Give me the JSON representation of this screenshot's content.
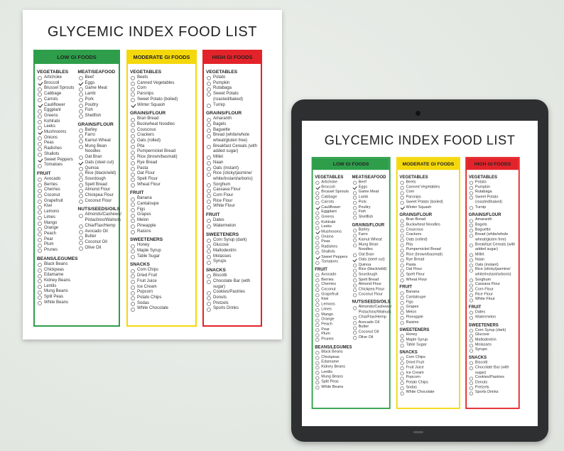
{
  "title": "GLYCEMIC INDEX FOOD LIST",
  "columns": [
    {
      "heading": "LOW GI FOODS",
      "color": "#2e9e4a",
      "subcolumns": [
        {
          "sections": [
            {
              "heading": "VEGETABLES",
              "items": [
                {
                  "label": "Artichoke"
                },
                {
                  "label": "Broccoli",
                  "checked": true
                },
                {
                  "label": "Brussel Sprouts"
                },
                {
                  "label": "Cabbage"
                },
                {
                  "label": "Carrots"
                },
                {
                  "label": "Cauliflower",
                  "checked": true
                },
                {
                  "label": "Eggplant"
                },
                {
                  "label": "Greens"
                },
                {
                  "label": "Kohlrabi"
                },
                {
                  "label": "Leeks"
                },
                {
                  "label": "Mushrooms",
                  "checked": true
                },
                {
                  "label": "Onions"
                },
                {
                  "label": "Peas"
                },
                {
                  "label": "Radishes"
                },
                {
                  "label": "Shallots"
                },
                {
                  "label": "Sweet Peppers",
                  "checked": true
                },
                {
                  "label": "Tomatoes"
                }
              ]
            },
            {
              "heading": "FRUIT",
              "items": [
                {
                  "label": "Avocado"
                },
                {
                  "label": "Berries"
                },
                {
                  "label": "Cherries"
                },
                {
                  "label": "Coconut"
                },
                {
                  "label": "Grapefruit"
                },
                {
                  "label": "Kiwi"
                },
                {
                  "label": "Lemons"
                },
                {
                  "label": "Limes"
                },
                {
                  "label": "Mango"
                },
                {
                  "label": "Orange"
                },
                {
                  "label": "Peach"
                },
                {
                  "label": "Pear"
                },
                {
                  "label": "Plum"
                },
                {
                  "label": "Prunes"
                }
              ]
            },
            {
              "heading": "BEANS/LEGUMES",
              "items": [
                {
                  "label": "Black Beans"
                },
                {
                  "label": "Chickpeas"
                },
                {
                  "label": "Edamame"
                },
                {
                  "label": "Kidney Beans"
                },
                {
                  "label": "Lentils"
                },
                {
                  "label": "Mung Beans"
                },
                {
                  "label": "Split Peas"
                },
                {
                  "label": "White Beans"
                }
              ]
            }
          ]
        },
        {
          "sections": [
            {
              "heading": "MEAT/SEAFOOD",
              "items": [
                {
                  "label": "Beef"
                },
                {
                  "label": "Eggs",
                  "checked": true
                },
                {
                  "label": "Game Meat"
                },
                {
                  "label": "Lamb"
                },
                {
                  "label": "Pork"
                },
                {
                  "label": "Poultry"
                },
                {
                  "label": "Fish"
                },
                {
                  "label": "Shellfish"
                }
              ]
            },
            {
              "heading": "GRAINS/FLOUR",
              "items": [
                {
                  "label": "Barley"
                },
                {
                  "label": "Farro"
                },
                {
                  "label": "Kamut Wheat"
                },
                {
                  "label": "Mung Bean Noodles"
                },
                {
                  "label": "Oat Bran"
                },
                {
                  "label": "Oats (steel cut)",
                  "checked": true
                },
                {
                  "label": "Quinoa"
                },
                {
                  "label": "Rice (black/wild)"
                },
                {
                  "label": "Sourdough"
                },
                {
                  "label": "Spelt Bread"
                },
                {
                  "label": "Almond Flour"
                },
                {
                  "label": "Chickpea Flour"
                },
                {
                  "label": "Coconut Flour"
                }
              ]
            },
            {
              "heading": "NUTS/SEEDS/OILS",
              "items": [
                {
                  "label": "Almonds/Cashews/ Pistachios/Walnuts"
                },
                {
                  "label": "Chia/Flax/Hemp"
                },
                {
                  "label": "Avocado Oil"
                },
                {
                  "label": "Butter"
                },
                {
                  "label": "Coconut Oil"
                },
                {
                  "label": "Olive Oil"
                }
              ]
            }
          ]
        }
      ]
    },
    {
      "heading": "MODERATE GI FOODS",
      "color": "#f4d80c",
      "subcolumns": [
        {
          "sections": [
            {
              "heading": "VEGETABLES",
              "items": [
                {
                  "label": "Beets"
                },
                {
                  "label": "Canned Vegetables"
                },
                {
                  "label": "Corn"
                },
                {
                  "label": "Parsnips"
                },
                {
                  "label": "Sweet Potato (boiled)"
                },
                {
                  "label": "Winter Squash",
                  "checked": true
                }
              ]
            },
            {
              "heading": "GRAINS/FLOUR",
              "items": [
                {
                  "label": "Bran Bread"
                },
                {
                  "label": "Buckwheat Noodles"
                },
                {
                  "label": "Couscous"
                },
                {
                  "label": "Crackers"
                },
                {
                  "label": "Oats (rolled)"
                },
                {
                  "label": "Pita"
                },
                {
                  "label": "Pumpernickel Bread"
                },
                {
                  "label": "Rice (brown/basmati)"
                },
                {
                  "label": "Rye Bread"
                },
                {
                  "label": "Pasta"
                },
                {
                  "label": "Oat Flour"
                },
                {
                  "label": "Spelt Flour"
                },
                {
                  "label": "Wheat Flour"
                }
              ]
            },
            {
              "heading": "FRUIT",
              "items": [
                {
                  "label": "Banana"
                },
                {
                  "label": "Cantaloupe"
                },
                {
                  "label": "Figs"
                },
                {
                  "label": "Grapes"
                },
                {
                  "label": "Melon"
                },
                {
                  "label": "Pineapple"
                },
                {
                  "label": "Raisins"
                }
              ]
            },
            {
              "heading": "SWEETENERS",
              "items": [
                {
                  "label": "Honey"
                },
                {
                  "label": "Maple Syrup"
                },
                {
                  "label": "Table Sugar"
                }
              ]
            },
            {
              "heading": "SNACKS",
              "items": [
                {
                  "label": "Corn Chips"
                },
                {
                  "label": "Dried Fruit"
                },
                {
                  "label": "Fruit Juice"
                },
                {
                  "label": "Ice Cream"
                },
                {
                  "label": "Popcorn"
                },
                {
                  "label": "Potato Chips"
                },
                {
                  "label": "Sodas"
                },
                {
                  "label": "White Chocolate"
                }
              ]
            }
          ]
        }
      ]
    },
    {
      "heading": "HIGH GI FOODS",
      "color": "#e3232a",
      "subcolumns": [
        {
          "sections": [
            {
              "heading": "VEGETABLES",
              "items": [
                {
                  "label": "Potato"
                },
                {
                  "label": "Pumpkin"
                },
                {
                  "label": "Rutabaga"
                },
                {
                  "label": "Sweet Potato (roasted/baked)"
                },
                {
                  "label": "Turnip"
                }
              ]
            },
            {
              "heading": "GRAINS/FLOUR",
              "items": [
                {
                  "label": "Amaranth"
                },
                {
                  "label": "Bagels"
                },
                {
                  "label": "Baguette"
                },
                {
                  "label": "Bread (white/whole wheat/gluten free)"
                },
                {
                  "label": "Breakfast Cereals (with added sugar)"
                },
                {
                  "label": "Millet"
                },
                {
                  "label": "Naan"
                },
                {
                  "label": "Oats (instant)"
                },
                {
                  "label": "Rice (sticky/jasmine/ white/instant/arborio)"
                },
                {
                  "label": "Sorghum"
                },
                {
                  "label": "Cassava Flour"
                },
                {
                  "label": "Corn Flour"
                },
                {
                  "label": "Rice Flour"
                },
                {
                  "label": "White Flour"
                }
              ]
            },
            {
              "heading": "FRUIT",
              "items": [
                {
                  "label": "Dates"
                },
                {
                  "label": "Watermelon"
                }
              ]
            },
            {
              "heading": "SWEETENERS",
              "items": [
                {
                  "label": "Corn Syrup (dark)"
                },
                {
                  "label": "Glucose"
                },
                {
                  "label": "Maltodextrin"
                },
                {
                  "label": "Molasses"
                },
                {
                  "label": "Syrups"
                }
              ]
            },
            {
              "heading": "SNACKS",
              "items": [
                {
                  "label": "Biscotti"
                },
                {
                  "label": "Chocolate Bar (with sugar)"
                },
                {
                  "label": "Cookies/Pastries"
                },
                {
                  "label": "Donuts"
                },
                {
                  "label": "Pretzels"
                },
                {
                  "label": "Sports Drinks"
                }
              ]
            }
          ]
        }
      ]
    }
  ]
}
